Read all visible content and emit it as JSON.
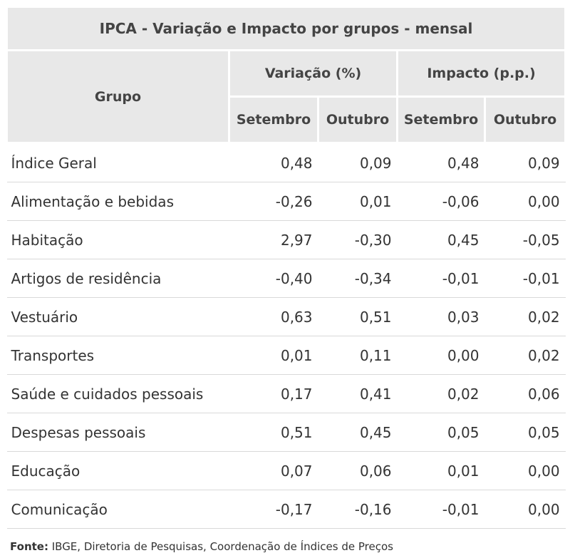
{
  "table": {
    "title": "IPCA - Variação e Impacto por grupos - mensal",
    "grupo_header": "Grupo",
    "variacao_header": "Variação (%)",
    "impacto_header": "Impacto (p.p.)",
    "sub_headers": [
      "Setembro",
      "Outubro",
      "Setembro",
      "Outubro"
    ],
    "rows": [
      {
        "grupo": "Índice Geral",
        "var_set": "0,48",
        "var_out": "0,09",
        "imp_set": "0,48",
        "imp_out": "0,09"
      },
      {
        "grupo": "Alimentação e bebidas",
        "var_set": "-0,26",
        "var_out": "0,01",
        "imp_set": "-0,06",
        "imp_out": "0,00"
      },
      {
        "grupo": "Habitação",
        "var_set": "2,97",
        "var_out": "-0,30",
        "imp_set": "0,45",
        "imp_out": "-0,05"
      },
      {
        "grupo": "Artigos de residência",
        "var_set": "-0,40",
        "var_out": "-0,34",
        "imp_set": "-0,01",
        "imp_out": "-0,01"
      },
      {
        "grupo": "Vestuário",
        "var_set": "0,63",
        "var_out": "0,51",
        "imp_set": "0,03",
        "imp_out": "0,02"
      },
      {
        "grupo": "Transportes",
        "var_set": "0,01",
        "var_out": "0,11",
        "imp_set": "0,00",
        "imp_out": "0,02"
      },
      {
        "grupo": "Saúde e cuidados pessoais",
        "var_set": "0,17",
        "var_out": "0,41",
        "imp_set": "0,02",
        "imp_out": "0,06"
      },
      {
        "grupo": "Despesas pessoais",
        "var_set": "0,51",
        "var_out": "0,45",
        "imp_set": "0,05",
        "imp_out": "0,05"
      },
      {
        "grupo": "Educação",
        "var_set": "0,07",
        "var_out": "0,06",
        "imp_set": "0,01",
        "imp_out": "0,00"
      },
      {
        "grupo": "Comunicação",
        "var_set": "-0,17",
        "var_out": "-0,16",
        "imp_set": "-0,01",
        "imp_out": "0,00"
      }
    ]
  },
  "footer": {
    "label": "Fonte:",
    "text": " IBGE, Diretoria de Pesquisas, Coordenação de Índices de Preços"
  },
  "colors": {
    "header_bg": "#e8e8e8",
    "row_border": "#d9d9d9",
    "text": "#333333"
  }
}
